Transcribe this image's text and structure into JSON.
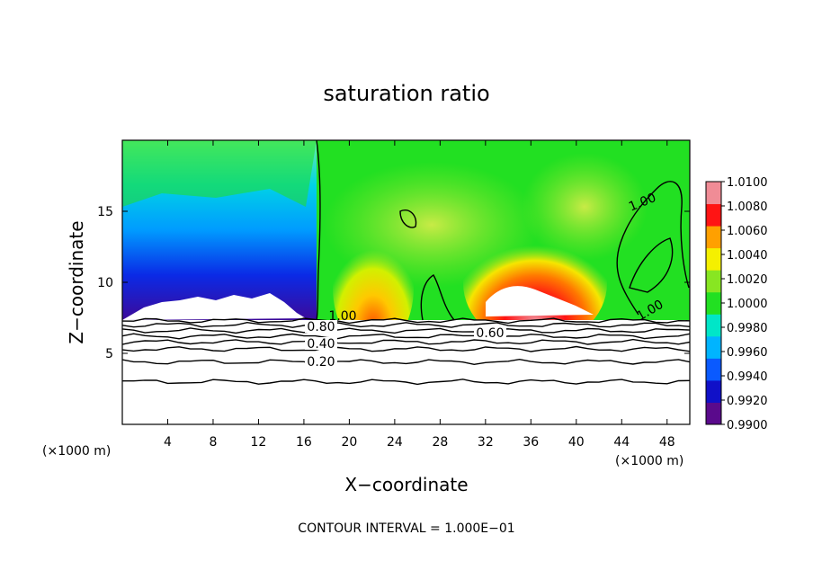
{
  "chart_data": {
    "type": "heatmap",
    "title": "saturation ratio",
    "xlabel": "X−coordinate",
    "ylabel": "Z−coordinate",
    "x_unit_left": "(×1000 m)",
    "x_unit_right": "(×1000 m)",
    "xlim": [
      0,
      50
    ],
    "ylim": [
      0,
      20
    ],
    "x_ticks": [
      4,
      8,
      12,
      16,
      20,
      24,
      28,
      32,
      36,
      40,
      44,
      48
    ],
    "x_tick_labels": [
      "4",
      "8",
      "12",
      "16",
      "20",
      "24",
      "28",
      "32",
      "36",
      "40",
      "44",
      "48"
    ],
    "y_ticks": [
      5,
      10,
      15
    ],
    "y_tick_labels": [
      "5",
      "10",
      "15"
    ],
    "colorbar": {
      "levels": [
        0.99,
        0.992,
        0.994,
        0.996,
        0.998,
        1.0,
        1.002,
        1.004,
        1.006,
        1.008,
        1.01
      ],
      "labels": [
        "0.9900",
        "0.9920",
        "0.9940",
        "0.9960",
        "0.9980",
        "1.0000",
        "1.0020",
        "1.0040",
        "1.0060",
        "1.0080",
        "1.0100"
      ],
      "colors": [
        "#5a0a8c",
        "#1010c8",
        "#0a5aff",
        "#00b4ff",
        "#00e6c8",
        "#22e022",
        "#88e622",
        "#f5f000",
        "#ffa000",
        "#ff1414",
        "#f08c96"
      ]
    },
    "contour_interval": 0.1,
    "contour_labels": [
      "1.00",
      "0.80",
      "0.40",
      "0.20",
      "0.60",
      "1.00",
      "1.00"
    ],
    "contour_lines_z": [
      3.0,
      4.4,
      5.3,
      5.8,
      6.2,
      6.6,
      7.0,
      7.3
    ],
    "regions": [
      {
        "name": "subsaturated-west",
        "x": [
          0,
          17
        ],
        "z_top": 20,
        "min": 0.99
      },
      {
        "name": "supersaturated-center",
        "x": [
          30,
          42
        ],
        "z": [
          7.3,
          11
        ],
        "max": 1.01
      }
    ],
    "footer": "CONTOUR INTERVAL = 1.000E−01"
  }
}
